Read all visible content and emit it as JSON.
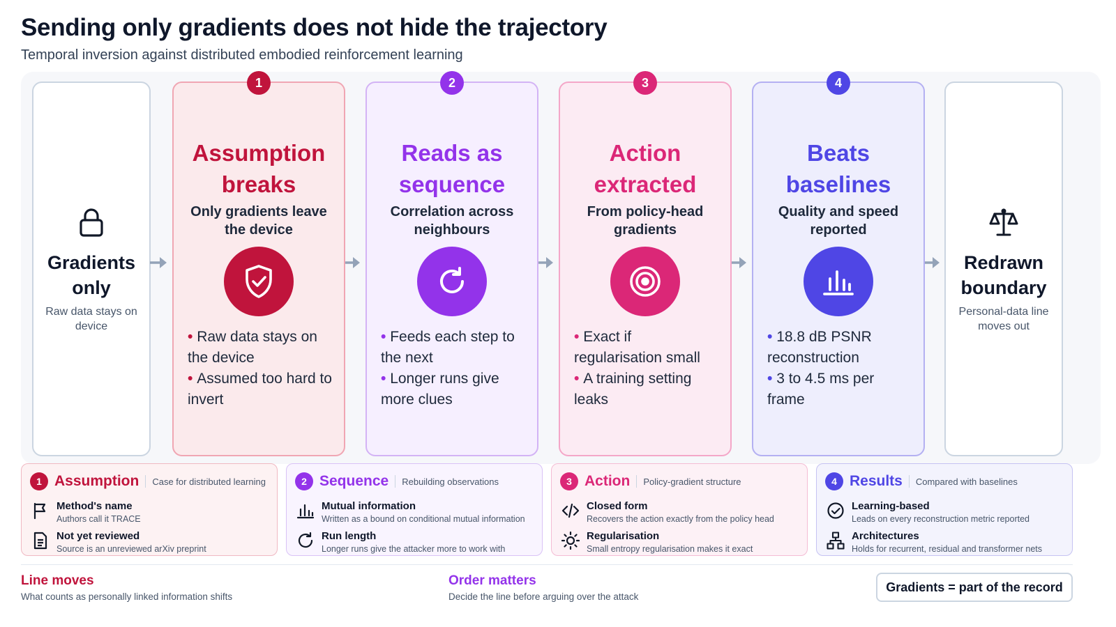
{
  "header": {
    "title": "Sending only gradients does not hide the trajectory",
    "subtitle": "Temporal inversion against distributed embodied reinforcement learning"
  },
  "flow": {
    "start": {
      "title": "Gradients only",
      "subtitle": "Raw data stays on device",
      "icon": "lock-icon"
    },
    "steps": [
      {
        "number": "1",
        "title": "Assumption breaks",
        "subtitle": "Only gradients leave the device",
        "icon": "shield-check-icon",
        "color": "#c0143c",
        "bg": "#fbeaec",
        "border": "#f0a6b3",
        "bullets": [
          "Raw data stays on the device",
          "Assumed too hard to invert"
        ]
      },
      {
        "number": "2",
        "title": "Reads as sequence",
        "subtitle": "Correlation across neighbours",
        "icon": "refresh-icon",
        "color": "#9333ea",
        "bg": "#f6efff",
        "border": "#d3b3f5",
        "bullets": [
          "Feeds each step to the next",
          "Longer runs give more clues"
        ]
      },
      {
        "number": "3",
        "title": "Action extracted",
        "subtitle": "From policy-head gradients",
        "icon": "target-icon",
        "color": "#db2777",
        "bg": "#fcebf3",
        "border": "#f4a7c8",
        "bullets": [
          "Exact if regularisation small",
          "A training setting leaks"
        ]
      },
      {
        "number": "4",
        "title": "Beats baselines",
        "subtitle": "Quality and speed reported",
        "icon": "bar-chart-icon",
        "color": "#4f46e5",
        "bg": "#eeeefd",
        "border": "#b4b0f2",
        "bullets": [
          "18.8 dB PSNR reconstruction",
          "3 to 4.5 ms per frame"
        ]
      }
    ],
    "end": {
      "title": "Redrawn boundary",
      "subtitle": "Personal-data line moves out",
      "icon": "scales-icon"
    }
  },
  "panels": [
    {
      "number": "1",
      "title": "Assumption",
      "caption": "Case for distributed learning",
      "color": "#c0143c",
      "bg": "#fdf2f3",
      "border": "#f0b8c2",
      "items": [
        {
          "icon": "flag-icon",
          "name": "Method's name",
          "desc": "Authors call it TRACE"
        },
        {
          "icon": "document-icon",
          "name": "Not yet reviewed",
          "desc": "Source is an unreviewed arXiv preprint"
        }
      ]
    },
    {
      "number": "2",
      "title": "Sequence",
      "caption": "Rebuilding observations",
      "color": "#9333ea",
      "bg": "#f9f4ff",
      "border": "#d9c2f6",
      "items": [
        {
          "icon": "bar-chart-icon",
          "name": "Mutual information",
          "desc": "Written as a bound on conditional mutual information"
        },
        {
          "icon": "refresh-icon",
          "name": "Run length",
          "desc": "Longer runs give the attacker more to work with"
        }
      ]
    },
    {
      "number": "3",
      "title": "Action",
      "caption": "Policy-gradient structure",
      "color": "#db2777",
      "bg": "#fdf1f6",
      "border": "#f4bcd4",
      "items": [
        {
          "icon": "code-icon",
          "name": "Closed form",
          "desc": "Recovers the action exactly from the policy head"
        },
        {
          "icon": "sun-icon",
          "name": "Regularisation",
          "desc": "Small entropy regularisation makes it exact"
        }
      ]
    },
    {
      "number": "4",
      "title": "Results",
      "caption": "Compared with baselines",
      "color": "#4f46e5",
      "bg": "#f3f3fd",
      "border": "#c5c2f2",
      "items": [
        {
          "icon": "check-circle-icon",
          "name": "Learning-based",
          "desc": "Leads on every reconstruction metric reported"
        },
        {
          "icon": "network-icon",
          "name": "Architectures",
          "desc": "Holds for recurrent, residual and transformer nets"
        }
      ]
    }
  ],
  "footer": {
    "left_title": "Line moves",
    "left_sub": "What counts as personally linked information shifts",
    "left_color": "#c0143c",
    "mid_title": "Order matters",
    "mid_sub": "Decide the line before arguing over the attack",
    "mid_color": "#9333ea",
    "pill": "Gradients = part of the record"
  }
}
